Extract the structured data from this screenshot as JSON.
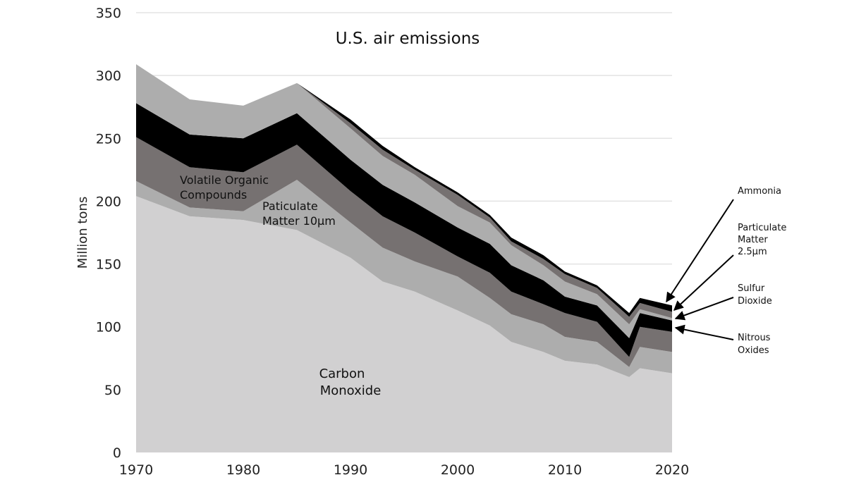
{
  "chart_data": {
    "type": "area",
    "stacked": true,
    "title": "U.S. air emissions",
    "xlabel": "",
    "ylabel": "Million tons",
    "xlim": [
      1970,
      2020
    ],
    "ylim": [
      0,
      350
    ],
    "xticks": [
      1970,
      1980,
      1990,
      2000,
      2010,
      2020
    ],
    "yticks": [
      0,
      50,
      100,
      150,
      200,
      250,
      300,
      350
    ],
    "grid": "horizontal",
    "legend": "none",
    "x": [
      1970,
      1975,
      1980,
      1985,
      1990,
      1993,
      1996,
      2000,
      2003,
      2005,
      2008,
      2010,
      2013,
      2016,
      2017,
      2020
    ],
    "series": [
      {
        "name": "Carbon Monoxide",
        "label_lines": [
          "Carbon",
          "Monoxide"
        ],
        "color": "#d1d0d1",
        "values": [
          204,
          188,
          185,
          177,
          155,
          136,
          128,
          113,
          101,
          88,
          80,
          73,
          70,
          60,
          67,
          63
        ]
      },
      {
        "name": "Paticulate Matter 10µm",
        "label_lines": [
          "Paticulate",
          "Matter 10µm"
        ],
        "color": "#adadad",
        "values": [
          12,
          7,
          7,
          40,
          28,
          27,
          24,
          27,
          22,
          22,
          22,
          19,
          18,
          8,
          17,
          17
        ]
      },
      {
        "name": "Volatile Organic Compounds",
        "label_lines": [
          "Volatile Organic",
          "Compounds"
        ],
        "color": "#767171",
        "values": [
          35,
          32,
          31,
          28,
          25,
          25,
          23,
          16,
          20,
          18,
          16,
          19,
          16,
          8,
          16,
          16
        ]
      },
      {
        "name": "Nitrous Oxides",
        "label_lines": [
          "Nitrous",
          "Oxides"
        ],
        "color": "#000000",
        "values": [
          27,
          26,
          27,
          25,
          25,
          25,
          24,
          23,
          23,
          21,
          19,
          13,
          13,
          15,
          11,
          9
        ]
      },
      {
        "name": "Sulfur Dioxide",
        "label_lines": [
          "Sulfur",
          "Dioxide"
        ],
        "color": "#adadad",
        "values": [
          31,
          28,
          26,
          24,
          25,
          23,
          22,
          17,
          17,
          16,
          12,
          12,
          9,
          11,
          3,
          2
        ]
      },
      {
        "name": "Particulate Matter 2.5µm",
        "label_lines": [
          "Particulate",
          "Matter",
          "2.5µm"
        ],
        "color": "#767171",
        "values": [
          0,
          0,
          0,
          0,
          4,
          5,
          4,
          9,
          4,
          3,
          5,
          6,
          5,
          6,
          5,
          5
        ]
      },
      {
        "name": "Ammonia",
        "label_lines": [
          "Ammonia"
        ],
        "color": "#000000",
        "values": [
          0,
          0,
          0,
          0,
          3,
          3,
          2,
          2,
          2,
          3,
          3,
          2,
          2,
          3,
          4,
          5
        ]
      }
    ]
  }
}
